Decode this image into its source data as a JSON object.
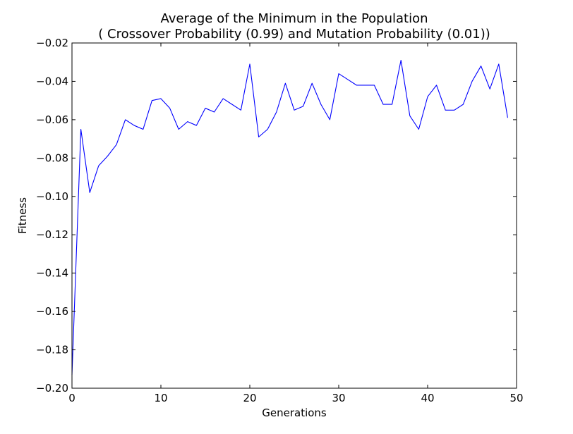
{
  "chart_data": {
    "type": "line",
    "title": "Average of the Minimum in the Population",
    "subtitle": "( Crossover Probability (0.99) and Mutation Probability (0.01))",
    "xlabel": "Generations",
    "ylabel": "Fitness",
    "xlim": [
      0,
      50
    ],
    "ylim": [
      -0.2,
      -0.02
    ],
    "xticks": [
      0,
      10,
      20,
      30,
      40,
      50
    ],
    "xtick_labels": [
      "0",
      "10",
      "20",
      "30",
      "40",
      "50"
    ],
    "yticks": [
      -0.2,
      -0.18,
      -0.16,
      -0.14,
      -0.12,
      -0.1,
      -0.08,
      -0.06,
      -0.04,
      -0.02
    ],
    "ytick_labels": [
      "−0.20",
      "−0.18",
      "−0.16",
      "−0.14",
      "−0.12",
      "−0.10",
      "−0.08",
      "−0.06",
      "−0.04",
      "−0.02"
    ],
    "grid": false,
    "legend": false,
    "series": [
      {
        "color": "#0000ff",
        "x": [
          0,
          1,
          2,
          3,
          4,
          5,
          6,
          7,
          8,
          9,
          10,
          11,
          12,
          13,
          14,
          15,
          16,
          17,
          18,
          19,
          20,
          21,
          22,
          23,
          24,
          25,
          26,
          27,
          28,
          29,
          30,
          31,
          32,
          33,
          34,
          35,
          36,
          37,
          38,
          39,
          40,
          41,
          42,
          43,
          44,
          45,
          46,
          47,
          48,
          49
        ],
        "values": [
          -0.193,
          -0.065,
          -0.098,
          -0.084,
          -0.079,
          -0.073,
          -0.06,
          -0.063,
          -0.065,
          -0.05,
          -0.049,
          -0.054,
          -0.065,
          -0.061,
          -0.063,
          -0.054,
          -0.056,
          -0.049,
          -0.052,
          -0.055,
          -0.031,
          -0.069,
          -0.065,
          -0.056,
          -0.041,
          -0.055,
          -0.053,
          -0.041,
          -0.052,
          -0.06,
          -0.036,
          -0.039,
          -0.042,
          -0.042,
          -0.042,
          -0.052,
          -0.052,
          -0.029,
          -0.058,
          -0.065,
          -0.048,
          -0.042,
          -0.055,
          -0.055,
          -0.052,
          -0.04,
          -0.032,
          -0.044,
          -0.031,
          -0.059
        ]
      }
    ]
  }
}
